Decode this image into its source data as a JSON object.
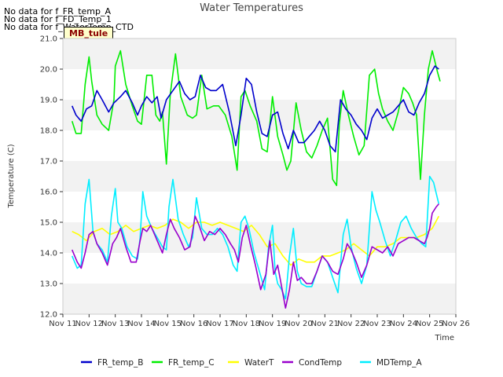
{
  "nodata_messages": [
    "No data for f_FR_temp_A",
    "No data for f_FD_Temp_1",
    "No data for f_WaterTemp_CTD"
  ],
  "badge": "MB_tule",
  "chart_data": {
    "type": "line",
    "title": "Water Temperatures",
    "xlabel": "Time",
    "ylabel": "Temperature (C)",
    "xlim": [
      11,
      26
    ],
    "ylim": [
      12.0,
      21.0
    ],
    "x_ticks": [
      "Nov 11",
      "Nov 12",
      "Nov 13",
      "Nov 14",
      "Nov 15",
      "Nov 16",
      "Nov 17",
      "Nov 18",
      "Nov 19",
      "Nov 20",
      "Nov 21",
      "Nov 22",
      "Nov 23",
      "Nov 24",
      "Nov 25",
      "Nov 26"
    ],
    "y_ticks": [
      "12.0",
      "13.0",
      "14.0",
      "15.0",
      "16.0",
      "17.0",
      "18.0",
      "19.0",
      "20.0",
      "21.0"
    ],
    "grid": "horizontal bands",
    "legend_position": "bottom",
    "series": [
      {
        "name": "FR_temp_B",
        "color": "#0000cc",
        "x": [
          11.35,
          11.5,
          11.7,
          11.9,
          12.1,
          12.3,
          12.5,
          12.75,
          12.95,
          13.2,
          13.4,
          13.65,
          13.85,
          14.0,
          14.2,
          14.4,
          14.6,
          14.75,
          14.95,
          15.2,
          15.45,
          15.65,
          15.85,
          16.05,
          16.25,
          16.45,
          16.65,
          16.85,
          17.1,
          17.35,
          17.6,
          17.8,
          18.0,
          18.2,
          18.4,
          18.6,
          18.8,
          19.0,
          19.2,
          19.4,
          19.6,
          19.8,
          20.0,
          20.2,
          20.4,
          20.6,
          20.8,
          21.0,
          21.2,
          21.4,
          21.6,
          21.8,
          22.0,
          22.2,
          22.4,
          22.6,
          22.8,
          23.0,
          23.2,
          23.4,
          23.6,
          23.8,
          24.0,
          24.2,
          24.4,
          24.6,
          24.8,
          25.0,
          25.2,
          25.35
        ],
        "y": [
          18.8,
          18.5,
          18.3,
          18.7,
          18.8,
          19.3,
          19.0,
          18.6,
          18.9,
          19.1,
          19.3,
          18.9,
          18.5,
          18.8,
          19.1,
          18.9,
          19.1,
          18.4,
          19.0,
          19.3,
          19.6,
          19.2,
          19.0,
          19.1,
          19.8,
          19.4,
          19.3,
          19.3,
          19.5,
          18.6,
          17.5,
          18.5,
          19.7,
          19.5,
          18.6,
          17.9,
          17.8,
          18.5,
          18.6,
          17.9,
          17.4,
          18.0,
          17.6,
          17.6,
          17.8,
          18.0,
          18.3,
          18.0,
          17.5,
          17.3,
          19.0,
          18.7,
          18.5,
          18.2,
          18.0,
          17.7,
          18.4,
          18.7,
          18.4,
          18.5,
          18.6,
          18.8,
          19.0,
          18.6,
          18.5,
          18.9,
          19.2,
          19.8,
          20.1,
          20.0
        ]
      },
      {
        "name": "FR_temp_C",
        "color": "#00ee00",
        "x": [
          11.35,
          11.5,
          11.7,
          11.85,
          12.0,
          12.1,
          12.3,
          12.5,
          12.75,
          12.95,
          13.0,
          13.2,
          13.4,
          13.65,
          13.85,
          14.0,
          14.2,
          14.4,
          14.55,
          14.7,
          14.8,
          14.95,
          15.1,
          15.3,
          15.5,
          15.75,
          15.95,
          16.1,
          16.3,
          16.5,
          16.75,
          16.95,
          17.2,
          17.45,
          17.65,
          17.8,
          17.95,
          18.15,
          18.4,
          18.6,
          18.8,
          19.0,
          19.2,
          19.4,
          19.55,
          19.7,
          19.9,
          20.1,
          20.3,
          20.5,
          20.7,
          20.9,
          21.1,
          21.3,
          21.45,
          21.55,
          21.7,
          21.9,
          22.1,
          22.3,
          22.5,
          22.7,
          22.9,
          23.05,
          23.2,
          23.4,
          23.6,
          23.8,
          24.0,
          24.2,
          24.35,
          24.5,
          24.65,
          24.8,
          24.95,
          25.1,
          25.3,
          25.4
        ],
        "y": [
          18.3,
          17.9,
          17.9,
          19.5,
          20.4,
          19.6,
          18.5,
          18.2,
          18.0,
          19.0,
          20.1,
          20.6,
          19.5,
          18.8,
          18.3,
          18.2,
          19.8,
          19.8,
          18.5,
          18.3,
          18.6,
          16.9,
          19.2,
          20.5,
          19.1,
          18.5,
          18.4,
          18.5,
          19.8,
          18.7,
          18.8,
          18.8,
          18.5,
          17.8,
          16.7,
          19.1,
          19.3,
          18.8,
          18.3,
          17.4,
          17.3,
          19.1,
          17.8,
          17.2,
          16.7,
          17.0,
          18.9,
          18.0,
          17.3,
          17.1,
          17.5,
          18.0,
          18.4,
          16.4,
          16.2,
          18.2,
          19.3,
          18.5,
          17.8,
          17.2,
          17.5,
          19.8,
          20.0,
          19.2,
          18.7,
          18.3,
          18.0,
          18.6,
          19.4,
          19.2,
          18.9,
          18.5,
          16.4,
          18.5,
          20.0,
          20.6,
          19.9,
          19.6
        ]
      },
      {
        "name": "WaterT",
        "color": "#ffff00",
        "x": [
          11.35,
          11.6,
          11.9,
          12.2,
          12.5,
          12.8,
          13.1,
          13.4,
          13.7,
          14.0,
          14.3,
          14.6,
          14.9,
          15.2,
          15.5,
          15.8,
          16.1,
          16.4,
          16.7,
          17.0,
          17.3,
          17.6,
          17.9,
          18.2,
          18.5,
          18.8,
          19.1,
          19.4,
          19.7,
          20.0,
          20.3,
          20.6,
          20.9,
          21.2,
          21.5,
          21.8,
          22.1,
          22.4,
          22.7,
          23.0,
          23.3,
          23.6,
          23.9,
          24.2,
          24.5,
          24.8,
          25.1,
          25.35
        ],
        "y": [
          14.7,
          14.6,
          14.4,
          14.7,
          14.8,
          14.6,
          14.7,
          14.9,
          14.7,
          14.8,
          14.9,
          14.8,
          14.9,
          15.1,
          15.0,
          14.8,
          15.0,
          15.0,
          14.9,
          15.0,
          14.9,
          14.8,
          14.7,
          14.9,
          14.6,
          14.2,
          14.3,
          13.9,
          13.6,
          13.8,
          13.7,
          13.7,
          13.9,
          13.9,
          14.0,
          14.1,
          14.3,
          14.1,
          13.9,
          14.2,
          14.2,
          14.3,
          14.5,
          14.5,
          14.5,
          14.6,
          14.8,
          15.2
        ]
      },
      {
        "name": "CondTemp",
        "color": "#9900cc",
        "x": [
          11.35,
          11.55,
          11.7,
          11.85,
          12.0,
          12.15,
          12.3,
          12.5,
          12.7,
          12.9,
          13.05,
          13.2,
          13.4,
          13.6,
          13.8,
          13.95,
          14.05,
          14.2,
          14.35,
          14.5,
          14.65,
          14.8,
          14.95,
          15.1,
          15.25,
          15.45,
          15.65,
          15.85,
          16.05,
          16.2,
          16.4,
          16.6,
          16.8,
          17.0,
          17.2,
          17.4,
          17.55,
          17.7,
          17.85,
          18.0,
          18.15,
          18.35,
          18.55,
          18.75,
          18.9,
          19.05,
          19.2,
          19.35,
          19.5,
          19.65,
          19.8,
          19.95,
          20.1,
          20.3,
          20.5,
          20.7,
          20.9,
          21.1,
          21.3,
          21.5,
          21.7,
          21.85,
          22.0,
          22.2,
          22.4,
          22.6,
          22.8,
          23.0,
          23.2,
          23.4,
          23.6,
          23.8,
          24.0,
          24.2,
          24.4,
          24.6,
          24.8,
          24.9,
          25.0,
          25.1,
          25.25,
          25.35
        ],
        "y": [
          14.1,
          13.7,
          13.5,
          14.0,
          14.6,
          14.7,
          14.3,
          14.0,
          13.6,
          14.3,
          14.5,
          14.8,
          14.2,
          13.7,
          13.7,
          14.4,
          14.8,
          14.7,
          14.9,
          14.6,
          14.3,
          14.0,
          14.6,
          15.1,
          14.8,
          14.5,
          14.1,
          14.2,
          15.2,
          14.9,
          14.4,
          14.7,
          14.6,
          14.8,
          14.6,
          14.3,
          14.1,
          13.7,
          14.5,
          14.9,
          14.3,
          13.6,
          12.8,
          13.3,
          14.4,
          13.3,
          13.6,
          12.9,
          12.2,
          12.8,
          13.7,
          13.1,
          13.2,
          13.0,
          13.0,
          13.4,
          13.9,
          13.7,
          13.4,
          13.3,
          13.8,
          14.3,
          14.1,
          13.7,
          13.2,
          13.6,
          14.2,
          14.1,
          14.0,
          14.2,
          13.9,
          14.3,
          14.4,
          14.5,
          14.5,
          14.4,
          14.3,
          14.5,
          14.8,
          15.3,
          15.5,
          15.6
        ]
      },
      {
        "name": "MDTemp_A",
        "color": "#00eeff",
        "x": [
          11.35,
          11.55,
          11.7,
          11.85,
          12.0,
          12.15,
          12.3,
          12.5,
          12.7,
          12.85,
          13.0,
          13.1,
          13.25,
          13.45,
          13.65,
          13.85,
          13.95,
          14.05,
          14.2,
          14.4,
          14.6,
          14.8,
          14.95,
          15.05,
          15.2,
          15.4,
          15.6,
          15.8,
          15.95,
          16.1,
          16.3,
          16.5,
          16.7,
          16.9,
          17.1,
          17.3,
          17.5,
          17.65,
          17.8,
          17.95,
          18.1,
          18.3,
          18.5,
          18.7,
          18.85,
          19.0,
          19.1,
          19.2,
          19.35,
          19.5,
          19.65,
          19.8,
          19.95,
          20.1,
          20.3,
          20.5,
          20.7,
          20.9,
          21.1,
          21.3,
          21.5,
          21.7,
          21.85,
          22.0,
          22.2,
          22.4,
          22.6,
          22.8,
          22.95,
          23.1,
          23.3,
          23.5,
          23.7,
          23.9,
          24.1,
          24.3,
          24.5,
          24.7,
          24.85,
          25.0,
          25.15,
          25.35
        ],
        "y": [
          13.9,
          13.5,
          13.6,
          15.6,
          16.4,
          14.7,
          14.3,
          14.1,
          13.7,
          15.2,
          16.1,
          15.0,
          14.8,
          14.2,
          13.9,
          13.8,
          14.5,
          16.0,
          15.2,
          14.8,
          14.5,
          14.2,
          14.1,
          15.5,
          16.4,
          15.1,
          14.6,
          14.2,
          14.5,
          15.8,
          14.8,
          14.6,
          14.6,
          14.8,
          14.6,
          14.2,
          13.6,
          13.4,
          15.0,
          15.2,
          14.8,
          14.0,
          13.4,
          12.8,
          14.2,
          14.9,
          13.4,
          13.0,
          12.8,
          12.5,
          13.9,
          14.8,
          13.4,
          13.0,
          12.9,
          12.9,
          13.4,
          13.9,
          13.7,
          13.2,
          12.7,
          14.6,
          15.1,
          14.2,
          13.5,
          13.0,
          13.6,
          16.0,
          15.4,
          15.0,
          14.4,
          13.9,
          14.4,
          15.0,
          15.2,
          14.8,
          14.5,
          14.3,
          14.2,
          16.5,
          16.3,
          15.6
        ]
      }
    ]
  }
}
